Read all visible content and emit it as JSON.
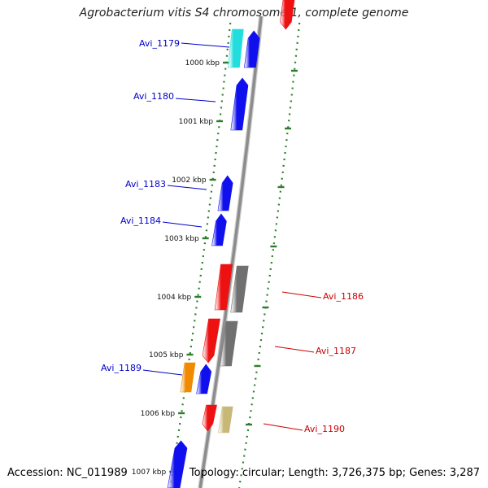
{
  "title": "Agrobacterium vitis S4 chromosome 1, complete genome",
  "accession_label": "Accession: NC_011989",
  "stats_label": "Topology: circular; Length: 3,726,375 bp; Genes: 3,287",
  "colors": {
    "backbone": "#8c8c8c",
    "tick": "#2e7d2e",
    "label_forward": "#0000cc",
    "label_reverse": "#cc0000",
    "blue": "#1010ee",
    "cyan": "#22dddd",
    "red": "#ee1111",
    "gray": "#707070",
    "orange": "#f08a00",
    "tan": "#c8b878"
  },
  "ticks": [
    {
      "label": "1000 kbp"
    },
    {
      "label": "1001 kbp"
    },
    {
      "label": "1002 kbp"
    },
    {
      "label": "1003 kbp"
    },
    {
      "label": "1004 kbp"
    },
    {
      "label": "1005 kbp"
    },
    {
      "label": "1006 kbp"
    },
    {
      "label": "1007 kbp"
    }
  ],
  "gene_labels": [
    {
      "text": "Avi_1179",
      "strand": "forward"
    },
    {
      "text": "Avi_1180",
      "strand": "forward"
    },
    {
      "text": "Avi_1183",
      "strand": "forward"
    },
    {
      "text": "Avi_1184",
      "strand": "forward"
    },
    {
      "text": "Avi_1189",
      "strand": "forward"
    },
    {
      "text": "Avi_1186",
      "strand": "reverse"
    },
    {
      "text": "Avi_1187",
      "strand": "reverse"
    },
    {
      "text": "Avi_1190",
      "strand": "reverse"
    }
  ]
}
